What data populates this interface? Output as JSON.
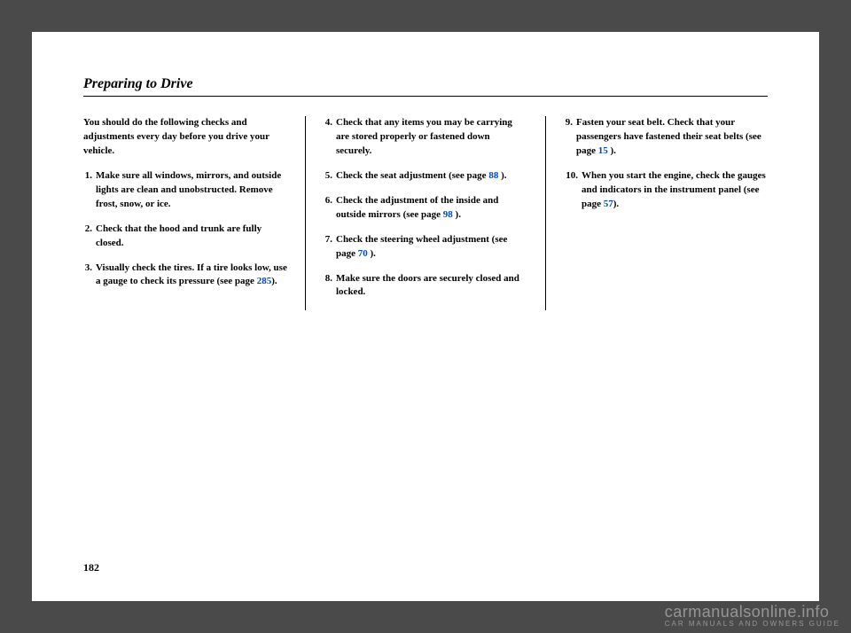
{
  "title": "Preparing to Drive",
  "pageNumber": "182",
  "intro": "You should do the following checks and adjustments every day before you drive your vehicle.",
  "col1": [
    {
      "n": "1.",
      "text": "Make sure all windows, mirrors, and outside lights are clean and unobstructed. Remove frost, snow, or ice."
    },
    {
      "n": "2.",
      "text": "Check that the hood and trunk are fully closed."
    },
    {
      "n": "3.",
      "text": "Visually check the tires. If a tire looks low, use a gauge to check its pressure (see page ",
      "ref": "285",
      "tail": ")."
    }
  ],
  "col2": [
    {
      "n": "4.",
      "text": "Check that any items you may be carrying are stored properly or fastened down securely."
    },
    {
      "n": "5.",
      "text": "Check the seat adjustment (see page ",
      "ref": "88",
      "tail": " )."
    },
    {
      "n": "6.",
      "text": "Check the adjustment of the inside and outside mirrors (see page ",
      "ref": "98",
      "tail": " )."
    },
    {
      "n": "7.",
      "text": "Check the steering wheel adjustment (see page ",
      "ref": "70",
      "tail": " )."
    },
    {
      "n": "8.",
      "text": "Make sure the doors are securely closed and locked."
    }
  ],
  "col3": [
    {
      "n": "9.",
      "text": "Fasten your seat belt. Check that your passengers have fastened their seat belts (see page ",
      "ref": "15",
      "tail": " )."
    },
    {
      "n": "10.",
      "text": "When you start the engine, check the gauges and indicators in the instrument panel (see page ",
      "ref": "57",
      "tail": ")."
    }
  ],
  "watermark": {
    "main": "carmanualsonline.info",
    "sub": "CAR MANUALS AND OWNERS GUIDE"
  }
}
